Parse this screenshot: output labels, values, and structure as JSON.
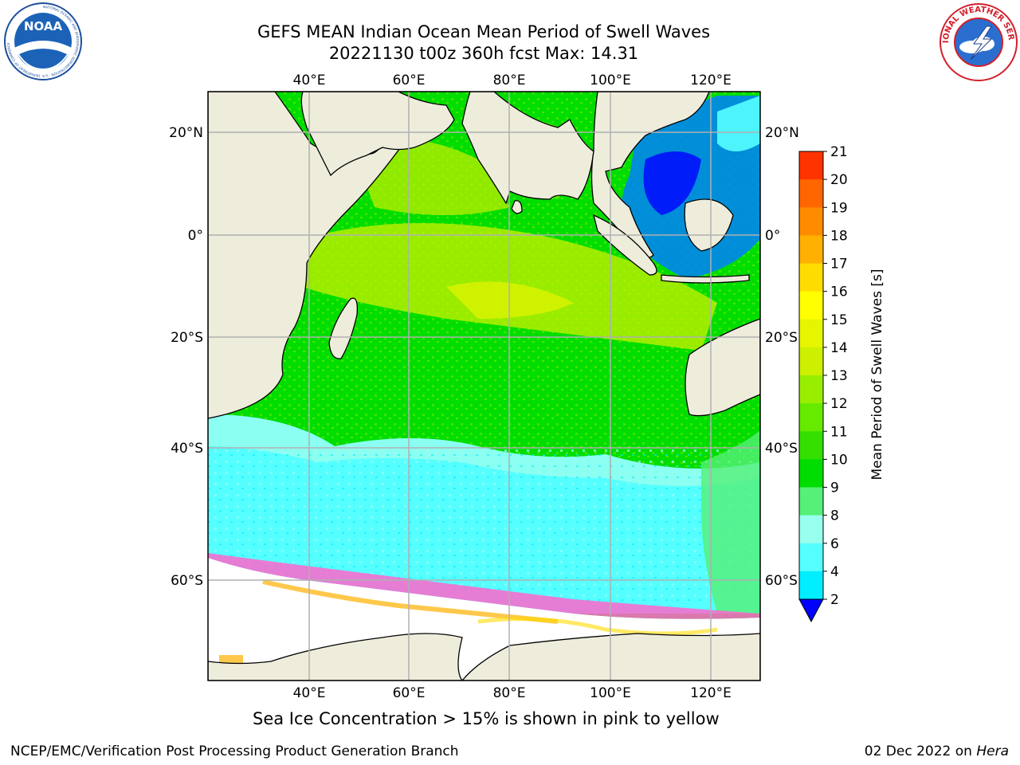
{
  "title": {
    "line1": "GEFS MEAN Indian Ocean Mean Period of Swell Waves",
    "line2": "20221130 t00z 360h fcst   Max: 14.31"
  },
  "map": {
    "lon_labels": [
      "40°E",
      "60°E",
      "80°E",
      "100°E",
      "120°E"
    ],
    "lat_labels": [
      "20°N",
      "0°",
      "20°S",
      "40°S",
      "60°S"
    ],
    "land_color": "#eeeddc",
    "sea_ice_color": "#ffffff"
  },
  "colorbar": {
    "label": "Mean Period of Swell Waves [s]",
    "ticks": [
      "21",
      "20",
      "19",
      "18",
      "17",
      "16",
      "15",
      "14",
      "13",
      "12",
      "11",
      "10",
      "9",
      "8",
      "6",
      "4",
      "2"
    ],
    "colors": [
      "#ff0000",
      "#ff3300",
      "#ff6600",
      "#ff8c00",
      "#ffb000",
      "#ffdc00",
      "#ffff00",
      "#e6f500",
      "#ccf000",
      "#99ee00",
      "#66ea00",
      "#33e000",
      "#00dd00",
      "#55f077",
      "#99ffee",
      "#55ffff",
      "#00eeff",
      "#0080ff",
      "#0000ff"
    ]
  },
  "logos": {
    "noaa": {
      "text": "NOAA",
      "ring": "NATIONAL OCEANIC AND ATMOSPHERIC ADMINISTRATION · U.S. DEPARTMENT OF COMMERCE"
    },
    "nws": {
      "ring": "NATIONAL WEATHER SERVICE"
    }
  },
  "footer": {
    "note": "Sea Ice Concentration > 15% is shown in pink to yellow",
    "credit": "NCEP/EMC/Verification Post Processing Product Generation Branch",
    "date": "02 Dec 2022 on",
    "host": "Hera"
  }
}
